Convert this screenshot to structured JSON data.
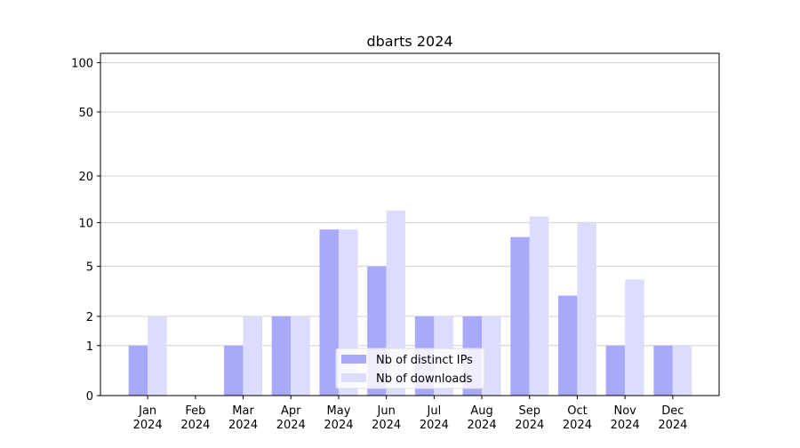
{
  "chart_data": {
    "type": "bar",
    "title": "dbarts 2024",
    "categories": [
      [
        "Jan",
        "2024"
      ],
      [
        "Feb",
        "2024"
      ],
      [
        "Mar",
        "2024"
      ],
      [
        "Apr",
        "2024"
      ],
      [
        "May",
        "2024"
      ],
      [
        "Jun",
        "2024"
      ],
      [
        "Jul",
        "2024"
      ],
      [
        "Aug",
        "2024"
      ],
      [
        "Sep",
        "2024"
      ],
      [
        "Oct",
        "2024"
      ],
      [
        "Nov",
        "2024"
      ],
      [
        "Dec",
        "2024"
      ]
    ],
    "series": [
      {
        "name": "Nb of distinct IPs",
        "color": "#a9a9fb",
        "values": [
          1,
          0,
          1,
          2,
          9,
          5,
          2,
          2,
          8,
          3,
          1,
          1
        ]
      },
      {
        "name": "Nb of downloads",
        "color": "#dcdcfd",
        "values": [
          2,
          0,
          2,
          2,
          9,
          12,
          2,
          2,
          11,
          10,
          4,
          1
        ]
      }
    ],
    "yscale": "log1p",
    "ylim": [
      0,
      114
    ],
    "yticks": [
      0,
      1,
      2,
      5,
      10,
      20,
      50,
      100
    ],
    "grid": true,
    "legend": "lower center"
  }
}
